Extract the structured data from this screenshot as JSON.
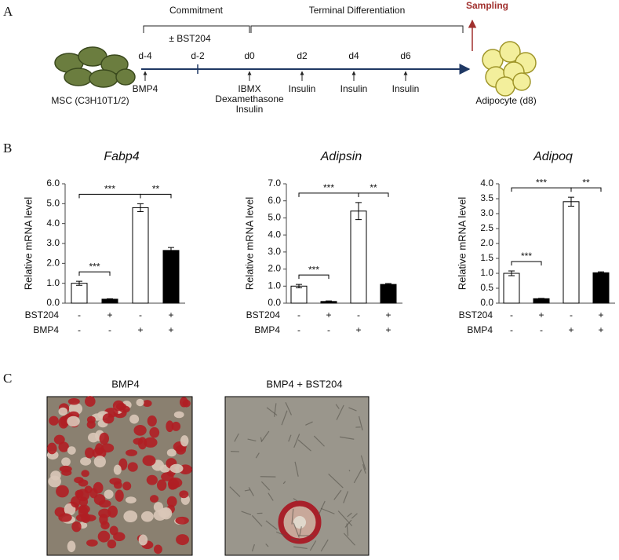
{
  "panel_a": {
    "label": "A",
    "phases": [
      "Commitment",
      "Terminal Differentiation"
    ],
    "bst": "± BST204",
    "sampling": "Sampling",
    "days": [
      "d-4",
      "d-2",
      "d0",
      "d2",
      "d4",
      "d6"
    ],
    "treatments": [
      [
        "BMP4"
      ],
      [],
      [
        "IBMX",
        "Dexamethasone",
        "Insulin"
      ],
      [
        "Insulin"
      ],
      [
        "Insulin"
      ],
      [
        "Insulin"
      ]
    ],
    "start": "MSC (C3H10T1/2)",
    "end": "Adipocyte (d8)"
  },
  "panel_b": {
    "label": "B"
  },
  "chart_data": [
    {
      "type": "bar",
      "title": "Fabp4",
      "y_label": "Relative  mRNA level",
      "values": [
        1.0,
        0.2,
        4.8,
        2.65
      ],
      "errors": [
        0.1,
        0.02,
        0.2,
        0.15
      ],
      "colors": [
        "#ffffff",
        "#000000",
        "#ffffff",
        "#000000"
      ],
      "ylim": [
        0,
        6
      ],
      "yticks": [
        {
          "value": 0,
          "label": "0.0"
        },
        {
          "value": 1,
          "label": "1.0"
        },
        {
          "value": 2,
          "label": "2.0"
        },
        {
          "value": 3,
          "label": "3.0"
        },
        {
          "value": 4,
          "label": "4.0"
        },
        {
          "value": 5,
          "label": "5.0"
        },
        {
          "value": 6,
          "label": "6.0"
        }
      ],
      "treatments": [
        {
          "name": "BST204",
          "signs": [
            "-",
            "+",
            "-",
            "+"
          ]
        },
        {
          "name": "BMP4",
          "signs": [
            "-",
            "-",
            "+",
            "+"
          ]
        }
      ],
      "significance": [
        {
          "from": 0,
          "to": 1,
          "label": "***"
        },
        {
          "from": 0,
          "to": 2,
          "label": "***"
        },
        {
          "from": 2,
          "to": 3,
          "label": "**"
        }
      ]
    },
    {
      "type": "bar",
      "title": "Adipsin",
      "y_label": "Relative  mRNA level",
      "values": [
        1.0,
        0.1,
        5.4,
        1.1
      ],
      "errors": [
        0.1,
        0.03,
        0.5,
        0.05
      ],
      "colors": [
        "#ffffff",
        "#000000",
        "#ffffff",
        "#000000"
      ],
      "ylim": [
        0,
        7
      ],
      "yticks": [
        {
          "value": 0,
          "label": "0.0"
        },
        {
          "value": 1,
          "label": "1.0"
        },
        {
          "value": 2,
          "label": "2.0"
        },
        {
          "value": 3,
          "label": "3.0"
        },
        {
          "value": 4,
          "label": "4.0"
        },
        {
          "value": 5,
          "label": "5.0"
        },
        {
          "value": 6,
          "label": "6.0"
        },
        {
          "value": 7,
          "label": "7.0"
        }
      ],
      "treatments": [
        {
          "name": "BST204",
          "signs": [
            "-",
            "+",
            "-",
            "+"
          ]
        },
        {
          "name": "BMP4",
          "signs": [
            "-",
            "-",
            "+",
            "+"
          ]
        }
      ],
      "significance": [
        {
          "from": 0,
          "to": 1,
          "label": "***"
        },
        {
          "from": 0,
          "to": 2,
          "label": "***"
        },
        {
          "from": 2,
          "to": 3,
          "label": "**"
        }
      ]
    },
    {
      "type": "bar",
      "title": "Adipoq",
      "y_label": "Relative  mRNA level",
      "values": [
        1.0,
        0.15,
        3.4,
        1.02
      ],
      "errors": [
        0.08,
        0.01,
        0.15,
        0.03
      ],
      "colors": [
        "#ffffff",
        "#000000",
        "#ffffff",
        "#000000"
      ],
      "ylim": [
        0,
        4
      ],
      "yticks": [
        {
          "value": 0,
          "label": "0.0"
        },
        {
          "value": 0.5,
          "label": "0.5"
        },
        {
          "value": 1,
          "label": "1.0"
        },
        {
          "value": 1.5,
          "label": "1.5"
        },
        {
          "value": 2,
          "label": "2.0"
        },
        {
          "value": 2.5,
          "label": "2.5"
        },
        {
          "value": 3,
          "label": "3.0"
        },
        {
          "value": 3.5,
          "label": "3.5"
        },
        {
          "value": 4,
          "label": "4.0"
        }
      ],
      "treatments": [
        {
          "name": "BST204",
          "signs": [
            "-",
            "+",
            "-",
            "+"
          ]
        },
        {
          "name": "BMP4",
          "signs": [
            "-",
            "-",
            "+",
            "+"
          ]
        }
      ],
      "significance": [
        {
          "from": 0,
          "to": 1,
          "label": "***"
        },
        {
          "from": 0,
          "to": 2,
          "label": "***"
        },
        {
          "from": 2,
          "to": 3,
          "label": "**"
        }
      ]
    }
  ],
  "panel_c": {
    "label": "C",
    "images": [
      "BMP4",
      "BMP4 + BST204"
    ]
  }
}
